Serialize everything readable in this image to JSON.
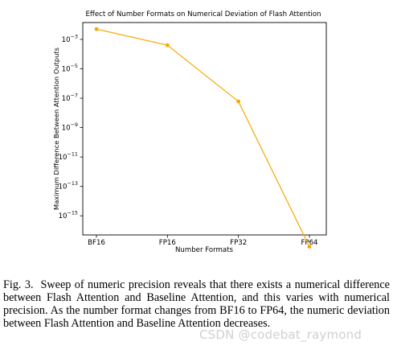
{
  "chart_data": {
    "type": "line",
    "title": "Effect of Number Formats on Numerical Deviation of Flash Attention",
    "xlabel": "Number Formats",
    "ylabel": "Maximum Difference Between Attention Outputs",
    "categories": [
      "BF16",
      "FP16",
      "FP32",
      "FP64"
    ],
    "series": [
      {
        "values": [
          0.005,
          0.0004,
          6e-08,
          8e-18
        ]
      }
    ],
    "y_scale": "log",
    "ylim": [
      5e-17,
      0.014
    ],
    "yticks": [
      {
        "value": 0.001,
        "base": "10",
        "exp": "−3"
      },
      {
        "value": 1e-05,
        "base": "10",
        "exp": "−5"
      },
      {
        "value": 1e-07,
        "base": "10",
        "exp": "−7"
      },
      {
        "value": 1e-09,
        "base": "10",
        "exp": "−9"
      },
      {
        "value": 1e-11,
        "base": "10",
        "exp": "−11"
      },
      {
        "value": 1e-13,
        "base": "10",
        "exp": "−13"
      },
      {
        "value": 1e-15,
        "base": "10",
        "exp": "−15"
      }
    ],
    "grid": false,
    "line_color": "#f5a800"
  },
  "caption": {
    "label": "Fig. 3.",
    "text": "Sweep of numeric precision reveals that there exists a numerical difference between Flash Attention and Baseline Attention, and this varies with numerical precision. As the number format changes from BF16 to FP64, the numeric deviation between Flash Attention and Baseline Attention decreases."
  },
  "watermark": "CSDN @codebat_raymond"
}
